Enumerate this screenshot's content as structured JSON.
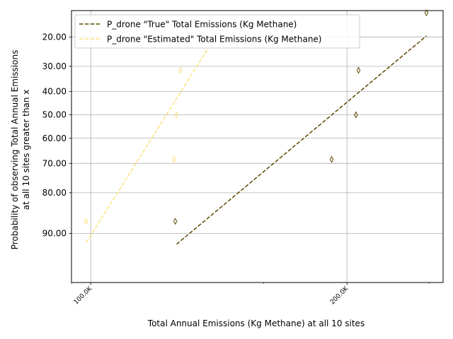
{
  "chart_data": {
    "type": "scatter",
    "title": "",
    "xlabel": "Total Annual Emissions (Kg Methane) at all 10 sites",
    "ylabel_lines": [
      "Probability of observing Total Annual Emissions",
      "at all 10 sites greater than x"
    ],
    "xlim": [
      92500,
      237500
    ],
    "ylim_prob": [
      96.5,
      13.0
    ],
    "x_ticks": [
      {
        "value": 100000,
        "label": "100.0K"
      },
      {
        "value": 200000,
        "label": "200.0K"
      }
    ],
    "x_minor_ticks": [
      92500,
      167500,
      232000
    ],
    "y_ticks": [
      {
        "value": 20,
        "label": "20.00"
      },
      {
        "value": 30,
        "label": "30.00"
      },
      {
        "value": 40,
        "label": "40.00"
      },
      {
        "value": 50,
        "label": "50.00"
      },
      {
        "value": 60,
        "label": "60.00"
      },
      {
        "value": 70,
        "label": "70.00"
      },
      {
        "value": 80,
        "label": "80.00"
      },
      {
        "value": 90,
        "label": "90.00"
      }
    ],
    "grid": true,
    "legend_position": "top-left",
    "series": [
      {
        "name": "P_drone \"True\" Total Emissions (Kg Methane)",
        "color": "#5c4800",
        "points": [
          {
            "x": 133000,
            "p": 87.5
          },
          {
            "x": 194000,
            "p": 68.5
          },
          {
            "x": 203500,
            "p": 50.0
          },
          {
            "x": 204500,
            "p": 31.5
          },
          {
            "x": 231000,
            "p": 13.5
          }
        ],
        "fit_line": [
          {
            "x": 133500,
            "p": 91.9
          },
          {
            "x": 231000,
            "p": 19.7
          }
        ]
      },
      {
        "name": "P_drone \"Estimated\" Total Emissions (Kg Methane)",
        "color": "#fbe27e",
        "points": [
          {
            "x": 98200,
            "p": 87.5
          },
          {
            "x": 132500,
            "p": 68.5
          },
          {
            "x": 133500,
            "p": 50.0
          },
          {
            "x": 135000,
            "p": 31.5
          }
        ],
        "fit_line": [
          {
            "x": 98300,
            "p": 91.6
          },
          {
            "x": 145500,
            "p": 24.0
          }
        ]
      }
    ]
  }
}
